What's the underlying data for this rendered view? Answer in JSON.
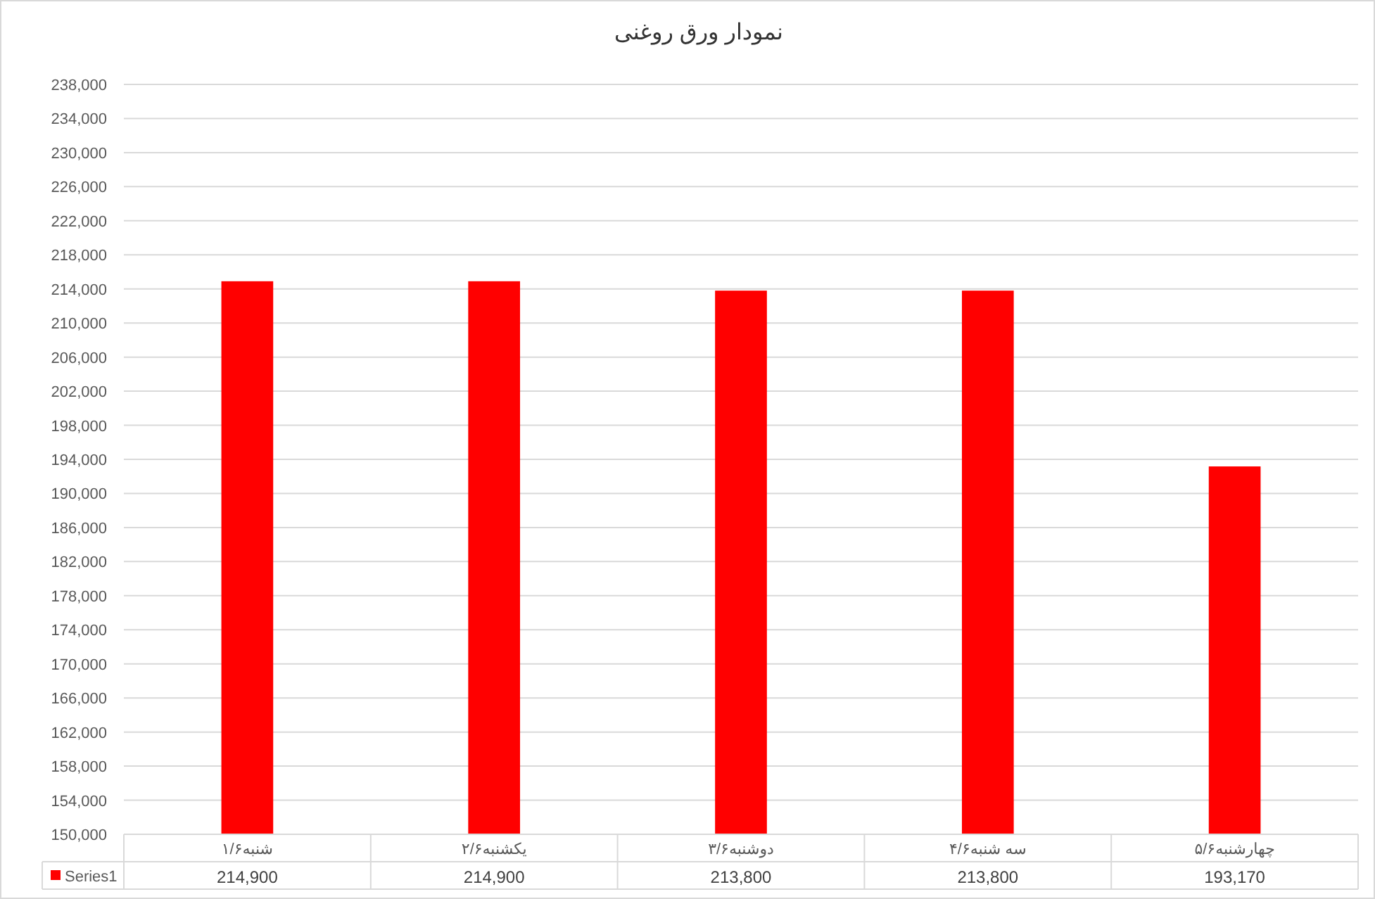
{
  "chart_data": {
    "type": "bar",
    "title": "نمودار ورق روغنی",
    "categories": [
      "شنبه۱/۶",
      "یکشنبه۲/۶",
      "دوشنبه۳/۶",
      "سه شنبه۴/۶",
      "چهارشنبه۵/۶"
    ],
    "series": [
      {
        "name": "Series1",
        "color": "#ff0000",
        "values": [
          214900,
          214900,
          213800,
          213800,
          193170
        ],
        "value_labels": [
          "214,900",
          "214,900",
          "213,800",
          "213,800",
          "193,170"
        ]
      }
    ],
    "ylim": [
      150000,
      238000
    ],
    "yticks": [
      {
        "value": 150000,
        "label": "150,000"
      },
      {
        "value": 154000,
        "label": "154,000"
      },
      {
        "value": 158000,
        "label": "158,000"
      },
      {
        "value": 162000,
        "label": "162,000"
      },
      {
        "value": 166000,
        "label": "166,000"
      },
      {
        "value": 170000,
        "label": "170,000"
      },
      {
        "value": 174000,
        "label": "174,000"
      },
      {
        "value": 178000,
        "label": "178,000"
      },
      {
        "value": 182000,
        "label": "182,000"
      },
      {
        "value": 186000,
        "label": "186,000"
      },
      {
        "value": 190000,
        "label": "190,000"
      },
      {
        "value": 194000,
        "label": "194,000"
      },
      {
        "value": 198000,
        "label": "198,000"
      },
      {
        "value": 202000,
        "label": "202,000"
      },
      {
        "value": 206000,
        "label": "206,000"
      },
      {
        "value": 210000,
        "label": "210,000"
      },
      {
        "value": 214000,
        "label": "214,000"
      },
      {
        "value": 218000,
        "label": "218,000"
      },
      {
        "value": 222000,
        "label": "222,000"
      },
      {
        "value": 226000,
        "label": "226,000"
      },
      {
        "value": 230000,
        "label": "230,000"
      },
      {
        "value": 234000,
        "label": "234,000"
      },
      {
        "value": 238000,
        "label": "238,000"
      }
    ],
    "grid": "y",
    "legend": "bottom"
  }
}
